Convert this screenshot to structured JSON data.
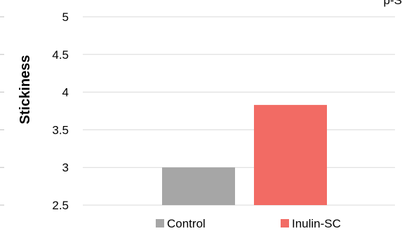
{
  "chart_data": {
    "type": "bar",
    "title": "",
    "ylabel": "Stickiness",
    "xlabel": "",
    "ylim": [
      2.5,
      5
    ],
    "yticks": [
      2.5,
      3,
      3.5,
      4,
      4.5,
      5
    ],
    "ytick_labels": [
      "2.5",
      "3",
      "3.5",
      "4",
      "4.5",
      "5"
    ],
    "categories": [
      ""
    ],
    "series": [
      {
        "name": "Control",
        "values": [
          3.0
        ],
        "color": "#a6a6a6"
      },
      {
        "name": "Inulin-SC",
        "values": [
          3.83
        ],
        "color": "#f26b64"
      }
    ],
    "grid": true,
    "legend_position": "bottom",
    "corner_text": "p-S"
  }
}
